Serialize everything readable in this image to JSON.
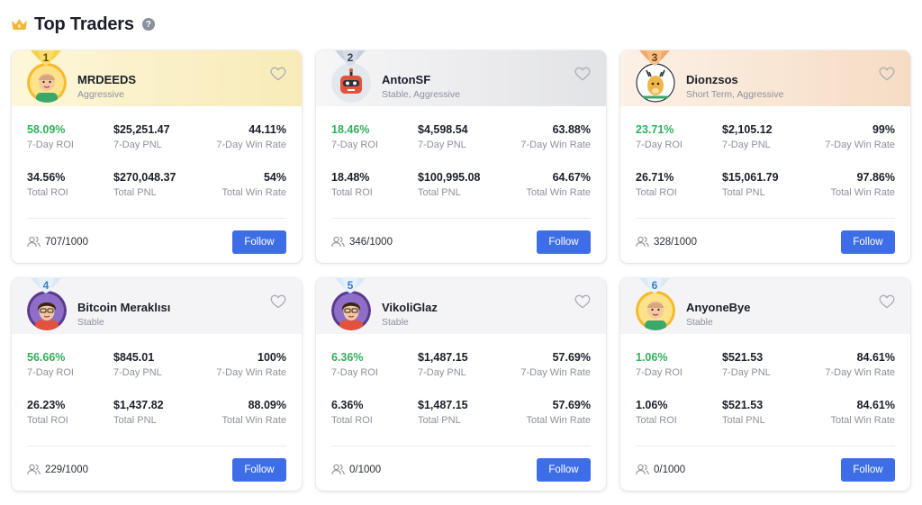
{
  "header": {
    "title": "Top Traders",
    "crown_icon": "crown-icon",
    "help_icon": "help-icon",
    "help_glyph": "?"
  },
  "colors": {
    "accent": "#3d6ee8",
    "positive": "#2fb05a",
    "gold": "#f3c23a",
    "silver": "#b9c3d2",
    "bronze": "#f1a25b",
    "plain": "#cfe3f5"
  },
  "traders": [
    {
      "rank": "1",
      "name": "MRDEEDS",
      "style": "Aggressive",
      "theme": "gold",
      "avatar": "avatar-bald",
      "stats": {
        "roi7": "58.09%",
        "roi7_label": "7-Day ROI",
        "pnl7": "$25,251.47",
        "pnl7_label": "7-Day PNL",
        "win7": "44.11%",
        "win7_label": "7-Day Win Rate",
        "roi": "34.56%",
        "roi_label": "Total ROI",
        "pnl": "$270,048.37",
        "pnl_label": "Total PNL",
        "win": "54%",
        "win_label": "Total Win Rate"
      },
      "followers": "707/1000",
      "follow_label": "Follow"
    },
    {
      "rank": "2",
      "name": "AntonSF",
      "style": "Stable, Aggressive",
      "theme": "silver",
      "avatar": "avatar-robot",
      "stats": {
        "roi7": "18.46%",
        "roi7_label": "7-Day ROI",
        "pnl7": "$4,598.54",
        "pnl7_label": "7-Day PNL",
        "win7": "63.88%",
        "win7_label": "7-Day Win Rate",
        "roi": "18.48%",
        "roi_label": "Total ROI",
        "pnl": "$100,995.08",
        "pnl_label": "Total PNL",
        "win": "64.67%",
        "win_label": "Total Win Rate"
      },
      "followers": "346/1000",
      "follow_label": "Follow"
    },
    {
      "rank": "3",
      "name": "Dionzsos",
      "style": "Short Term, Aggressive",
      "theme": "bronze",
      "avatar": "avatar-deer",
      "stats": {
        "roi7": "23.71%",
        "roi7_label": "7-Day ROI",
        "pnl7": "$2,105.12",
        "pnl7_label": "7-Day PNL",
        "win7": "99%",
        "win7_label": "7-Day Win Rate",
        "roi": "26.71%",
        "roi_label": "Total ROI",
        "pnl": "$15,061.79",
        "pnl_label": "Total PNL",
        "win": "97.86%",
        "win_label": "Total Win Rate"
      },
      "followers": "328/1000",
      "follow_label": "Follow"
    },
    {
      "rank": "4",
      "name": "Bitcoin Meraklısı",
      "style": "Stable",
      "theme": "plain",
      "avatar": "avatar-hair",
      "stats": {
        "roi7": "56.66%",
        "roi7_label": "7-Day ROI",
        "pnl7": "$845.01",
        "pnl7_label": "7-Day PNL",
        "win7": "100%",
        "win7_label": "7-Day Win Rate",
        "roi": "26.23%",
        "roi_label": "Total ROI",
        "pnl": "$1,437.82",
        "pnl_label": "Total PNL",
        "win": "88.09%",
        "win_label": "Total Win Rate"
      },
      "followers": "229/1000",
      "follow_label": "Follow"
    },
    {
      "rank": "5",
      "name": "VikoliGlaz",
      "style": "Stable",
      "theme": "plain",
      "avatar": "avatar-hair",
      "stats": {
        "roi7": "6.36%",
        "roi7_label": "7-Day ROI",
        "pnl7": "$1,487.15",
        "pnl7_label": "7-Day PNL",
        "win7": "57.69%",
        "win7_label": "7-Day Win Rate",
        "roi": "6.36%",
        "roi_label": "Total ROI",
        "pnl": "$1,487.15",
        "pnl_label": "Total PNL",
        "win": "57.69%",
        "win_label": "Total Win Rate"
      },
      "followers": "0/1000",
      "follow_label": "Follow"
    },
    {
      "rank": "6",
      "name": "AnyoneBye",
      "style": "Stable",
      "theme": "plain",
      "avatar": "avatar-bald",
      "stats": {
        "roi7": "1.06%",
        "roi7_label": "7-Day ROI",
        "pnl7": "$521.53",
        "pnl7_label": "7-Day PNL",
        "win7": "84.61%",
        "win7_label": "7-Day Win Rate",
        "roi": "1.06%",
        "roi_label": "Total ROI",
        "pnl": "$521.53",
        "pnl_label": "Total PNL",
        "win": "84.61%",
        "win_label": "Total Win Rate"
      },
      "followers": "0/1000",
      "follow_label": "Follow"
    }
  ]
}
